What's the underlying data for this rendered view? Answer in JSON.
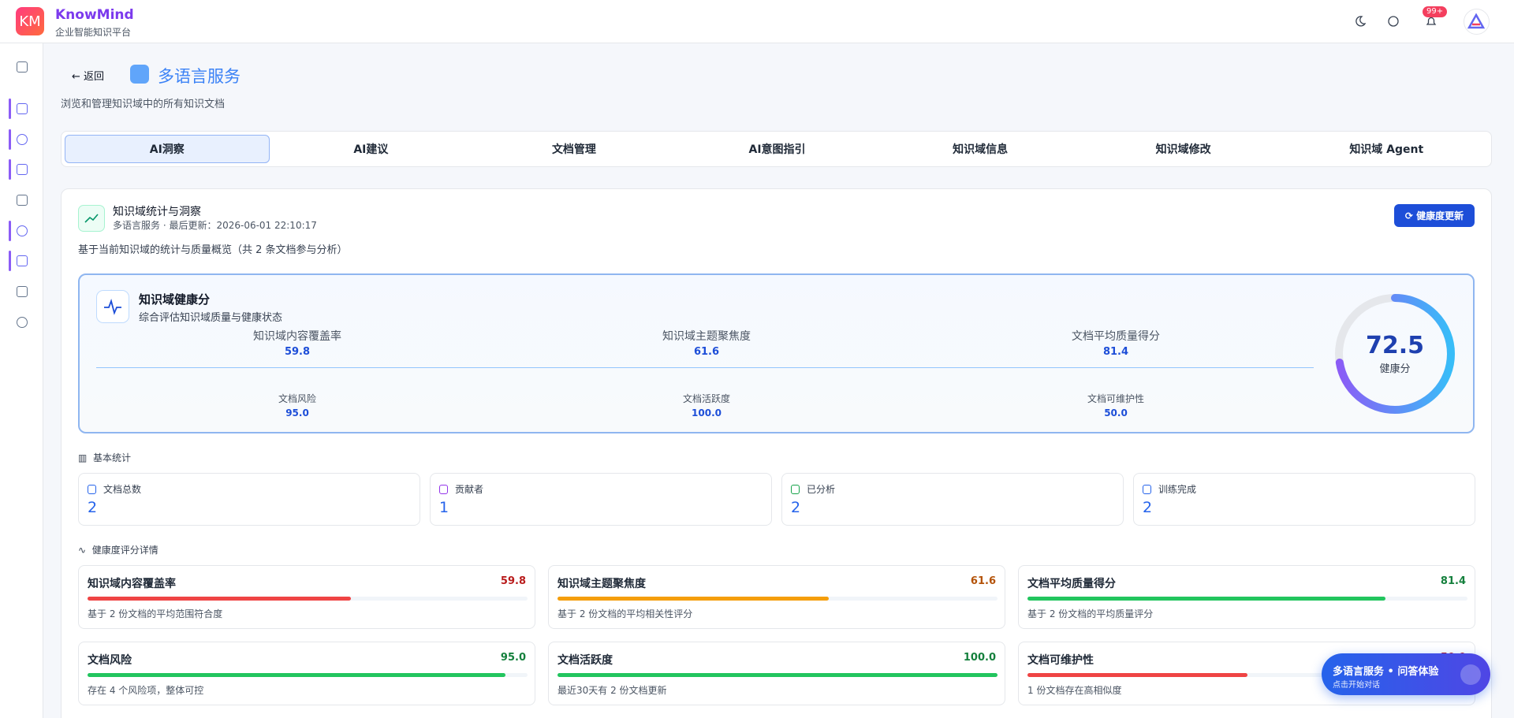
{
  "header": {
    "logo": "KM",
    "brand": "KnowMind",
    "subtitle": "企业智能知识平台",
    "badge": "99+"
  },
  "page": {
    "back": "返回",
    "title": "多语言服务",
    "description": "浏览和管理知识域中的所有知识文档"
  },
  "tabs": [
    "AI洞察",
    "AI建议",
    "文档管理",
    "AI意图指引",
    "知识域信息",
    "知识域修改",
    "知识域 Agent"
  ],
  "section": {
    "title": "知识域统计与洞察",
    "meta": "多语言服务 · 最后更新：2026-06-01 22:10:17",
    "button": "健康度更新",
    "summary": "基于当前知识域的统计与质量概览（共 2 条文档参与分析）"
  },
  "health": {
    "title": "知识域健康分",
    "subtitle": "综合评估知识域质量与健康状态",
    "score": 72.5,
    "score_label": "健康分"
  },
  "metrics": {
    "names": [
      "知识域内容覆盖率",
      "知识域主题聚焦度",
      "文档平均质量得分",
      "文档风险",
      "文档活跃度",
      "文档可维护性"
    ],
    "values": [
      59.8,
      61.6,
      81.4,
      95,
      100,
      50
    ],
    "value_labels": [
      "59.8",
      "61.6",
      "81.4",
      "95.0",
      "100.0",
      "50.0"
    ],
    "descriptions": [
      "基于 2 份文档的平均范围符合度",
      "基于 2 份文档的平均相关性评分",
      "基于 2 份文档的平均质量评分",
      "存在 4 个风险项，整体可控",
      "最近30天有 2 份文档更新",
      "1 份文档存在高相似度"
    ],
    "colors": [
      "#ef4444",
      "#f59e0b",
      "#22c55e",
      "#22c55e",
      "#22c55e",
      "#ef4444"
    ],
    "text_colors": [
      "#b91c1c",
      "#b45309",
      "#15803d",
      "#15803d",
      "#15803d",
      "#b91c1c"
    ]
  },
  "basic_stats": {
    "title": "基本统计",
    "names": [
      "文档总数",
      "贡献者",
      "已分析",
      "训练完成"
    ],
    "values": [
      2,
      1,
      2,
      2
    ]
  },
  "details_title": "健康度评分详情",
  "floating": {
    "title": "多语言服务 • 问答体验",
    "subtitle": "点击开始对话"
  }
}
